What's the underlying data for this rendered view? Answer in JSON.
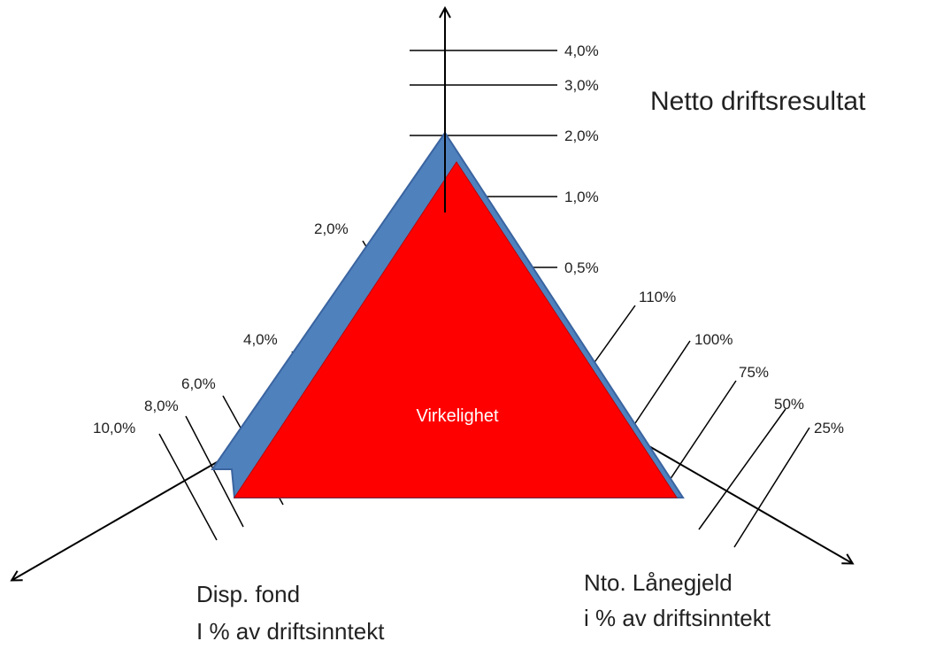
{
  "axes": [
    {
      "title": [
        "Netto driftsresultat"
      ],
      "ticks": [
        "4,0%",
        "3,0%",
        "2,0%",
        "1,0%",
        "0,5%"
      ]
    },
    {
      "title": [
        "Disp. fond",
        "I % av driftsinntekt"
      ],
      "ticks": [
        "2,0%",
        "4,0%",
        "6,0%",
        "8,0%",
        "10,0%"
      ]
    },
    {
      "title": [
        "Nto. Lånegjeld",
        "i % av driftsinntekt"
      ],
      "ticks": [
        "110%",
        "100%",
        "75%",
        "50%",
        "25%"
      ]
    }
  ],
  "label": "Virkelighet"
}
